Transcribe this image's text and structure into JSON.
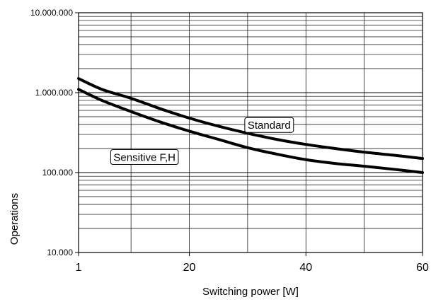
{
  "chart_data": {
    "type": "line",
    "xlabel": "Switching power  [W]",
    "ylabel": "Operations",
    "xlim": [
      1,
      60
    ],
    "ylim": [
      10000,
      10000000
    ],
    "yscale": "log",
    "grid": true,
    "x_ticks": [
      {
        "value": 1,
        "label": "1"
      },
      {
        "value": 20,
        "label": "20"
      },
      {
        "value": 40,
        "label": "40"
      },
      {
        "value": 60,
        "label": "60"
      }
    ],
    "y_ticks": [
      {
        "value": 10000,
        "label": "10.000"
      },
      {
        "value": 100000,
        "label": "100.000"
      },
      {
        "value": 1000000,
        "label": "1.000.000"
      },
      {
        "value": 10000000,
        "label": "10.000.000"
      }
    ],
    "series": [
      {
        "name": "Standard",
        "x": [
          1,
          5,
          10,
          15,
          20,
          25,
          30,
          35,
          40,
          45,
          50,
          55,
          60
        ],
        "y": [
          1500000,
          1100000,
          850000,
          630000,
          480000,
          380000,
          310000,
          260000,
          225000,
          200000,
          180000,
          165000,
          150000
        ]
      },
      {
        "name": "Sensitive F,H",
        "x": [
          1,
          5,
          10,
          15,
          20,
          25,
          30,
          35,
          40,
          45,
          50,
          55,
          60
        ],
        "y": [
          1100000,
          800000,
          580000,
          430000,
          330000,
          260000,
          205000,
          170000,
          145000,
          130000,
          120000,
          110000,
          100000
        ]
      }
    ]
  }
}
